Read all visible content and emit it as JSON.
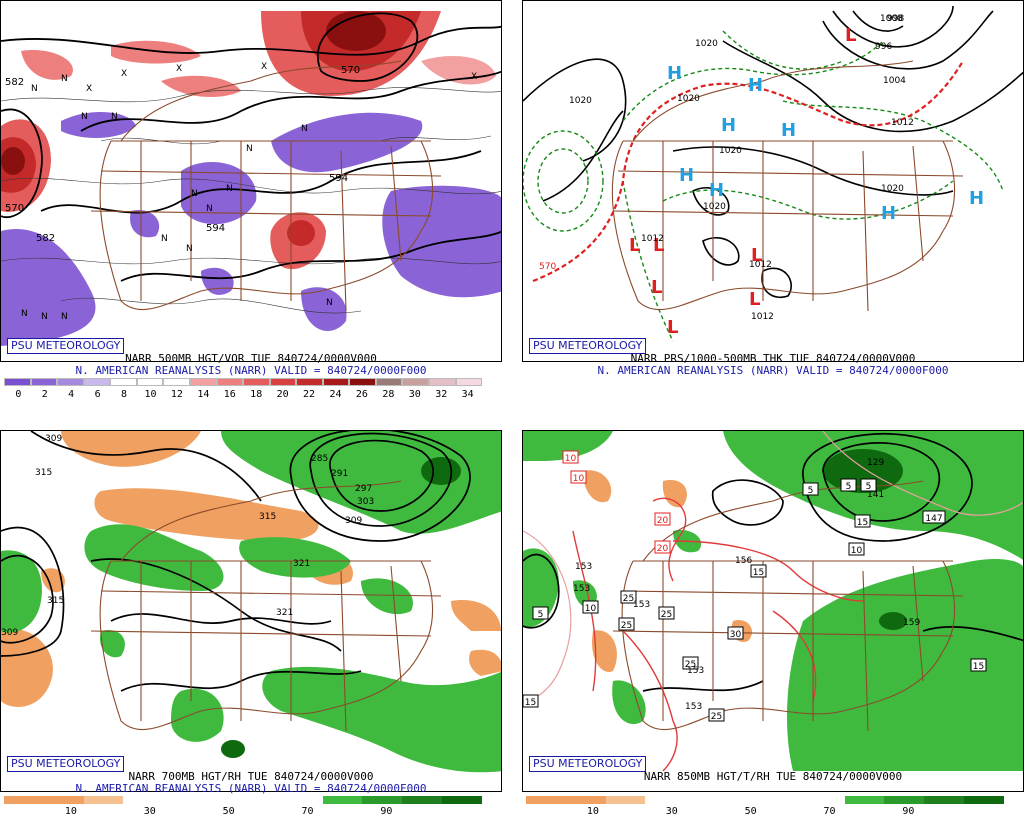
{
  "colors": {
    "border": "#8b4a2b",
    "vort_purple": "#8a64d6",
    "vort_red": "#d24545",
    "dry_orange": "#f0a060",
    "moist_green": "#3fba3f",
    "dark_green": "#0f6a0f",
    "cold_front": "#e02020",
    "thick_green": "#168a16",
    "high_blue": "#20a0e0",
    "low_red": "#e02020",
    "caption_blue": "#1a1aa8"
  },
  "panels": {
    "top_left": {
      "badge": "PSU METEOROLOGY",
      "line1": "NARR 500MB HGT/VOR TUE 840724/0000V000",
      "line2": "N. AMERICAN REANALYSIS (NARR) VALID = 840724/0000F000",
      "colorbar_ticks": [
        "0",
        "2",
        "4",
        "6",
        "8",
        "10",
        "12",
        "14",
        "16",
        "18",
        "20",
        "22",
        "24",
        "26",
        "28",
        "30",
        "32",
        "34"
      ],
      "colorbar_colors": [
        "#7a4fd0",
        "#8a64d6",
        "#a58ae0",
        "#c9b8ec",
        "#ffffff",
        "#ffffff",
        "#ffffff",
        "#f3a0a0",
        "#ee7f7f",
        "#e55c5c",
        "#d94040",
        "#c42a2a",
        "#a81818",
        "#8a1010",
        "#9b7a7a",
        "#c8a0a0",
        "#e6c0c8",
        "#f5d8e0"
      ],
      "labels": [
        "582",
        "N",
        "N",
        "N",
        "X",
        "X",
        "X",
        "N",
        "N",
        "N",
        "570",
        "582",
        "594",
        "N",
        "N",
        "594",
        "N",
        "N",
        "N",
        "N",
        "N",
        "N",
        "570",
        "X",
        "X",
        "N"
      ]
    },
    "top_right": {
      "badge": "PSU METEOROLOGY",
      "line1": "NARR PRS/1000-500MB THK TUE 840724/0000V000",
      "line2": "N. AMERICAN REANALYSIS (NARR) VALID = 840724/0000F000",
      "highs": [
        "H",
        "H",
        "H",
        "H",
        "H",
        "H",
        "H",
        "H"
      ],
      "lows": [
        "L",
        "L",
        "L",
        "L",
        "L",
        "L",
        "L"
      ],
      "isobar_labels": [
        "1020",
        "1020",
        "1020",
        "1020",
        "1008",
        "996",
        "1004",
        "1012",
        "1020",
        "1012",
        "1012",
        "1012",
        "1020",
        "998"
      ],
      "thickness_labels": [
        "570"
      ]
    },
    "bottom_left": {
      "badge": "PSU METEOROLOGY",
      "line1": "NARR 700MB HGT/RH TUE 840724/0000V000",
      "line2": "N. AMERICAN REANALYSIS (NARR) VALID = 840724/0000F000",
      "colorbar_ticks": [
        "10",
        "30",
        "50",
        "70",
        "90"
      ],
      "height_labels": [
        "309",
        "315",
        "315",
        "309",
        "285",
        "291",
        "297",
        "303",
        "315",
        "309",
        "321",
        "321"
      ]
    },
    "bottom_right": {
      "badge": "PSU METEOROLOGY",
      "line1": "NARR 850MB HGT/T/RH TUE 840724/0000V000",
      "line2": "",
      "colorbar_ticks": [
        "10",
        "30",
        "50",
        "70",
        "90"
      ],
      "boxed_temps": [
        "10",
        "10",
        "5",
        "20",
        "20",
        "15",
        "25",
        "25",
        "25",
        "30",
        "25",
        "25",
        "15",
        "5",
        "5",
        "5",
        "147",
        "15",
        "15",
        "10",
        "10"
      ],
      "height_labels": [
        "153",
        "153",
        "156",
        "153",
        "153",
        "153",
        "159",
        "141",
        "129"
      ]
    }
  }
}
